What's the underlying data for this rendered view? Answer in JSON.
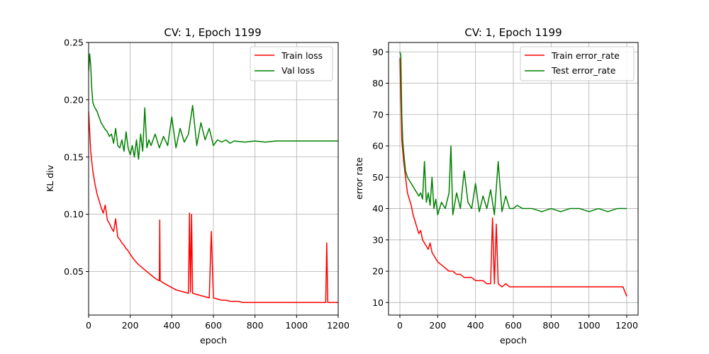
{
  "colors": {
    "train": "#ff0000",
    "val": "#008000",
    "grid": "#b0b0b0"
  },
  "chart_data": [
    {
      "type": "line",
      "title": "CV: 1, Epoch 1199",
      "xlabel": "epoch",
      "ylabel": "KL div",
      "xlim": [
        0,
        1200
      ],
      "ylim": [
        0.012,
        0.25
      ],
      "xticks": [
        0,
        200,
        400,
        600,
        800,
        1000,
        1200
      ],
      "yticks": [
        0.05,
        0.1,
        0.15,
        0.2,
        0.25
      ],
      "xtick_labels": [
        "0",
        "200",
        "400",
        "600",
        "800",
        "1000",
        "1200"
      ],
      "ytick_labels": [
        "0.05",
        "0.10",
        "0.15",
        "0.20",
        "0.25"
      ],
      "grid": true,
      "legend_position": "upper-right",
      "legend": [
        "Train loss",
        "Val loss"
      ],
      "series": [
        {
          "name": "Train loss",
          "color": "#ff0000",
          "x": [
            0,
            10,
            20,
            30,
            40,
            50,
            60,
            70,
            80,
            90,
            100,
            110,
            120,
            130,
            140,
            150,
            160,
            170,
            180,
            190,
            200,
            220,
            240,
            260,
            280,
            300,
            320,
            340,
            342,
            344,
            360,
            380,
            400,
            420,
            440,
            460,
            480,
            485,
            490,
            495,
            500,
            520,
            540,
            560,
            580,
            590,
            600,
            620,
            640,
            660,
            680,
            700,
            720,
            740,
            760,
            780,
            800,
            820,
            840,
            860,
            880,
            900,
            920,
            940,
            960,
            980,
            1000,
            1020,
            1040,
            1060,
            1080,
            1100,
            1120,
            1140,
            1145,
            1150,
            1160,
            1180,
            1200
          ],
          "y": [
            0.19,
            0.155,
            0.138,
            0.127,
            0.118,
            0.112,
            0.106,
            0.101,
            0.108,
            0.095,
            0.092,
            0.088,
            0.085,
            0.096,
            0.08,
            0.078,
            0.075,
            0.073,
            0.07,
            0.068,
            0.065,
            0.06,
            0.056,
            0.053,
            0.05,
            0.047,
            0.044,
            0.042,
            0.095,
            0.042,
            0.04,
            0.038,
            0.036,
            0.034,
            0.033,
            0.032,
            0.031,
            0.101,
            0.032,
            0.1,
            0.031,
            0.03,
            0.029,
            0.028,
            0.027,
            0.085,
            0.027,
            0.026,
            0.025,
            0.025,
            0.024,
            0.024,
            0.024,
            0.023,
            0.023,
            0.023,
            0.023,
            0.023,
            0.023,
            0.023,
            0.023,
            0.023,
            0.023,
            0.023,
            0.023,
            0.023,
            0.023,
            0.023,
            0.023,
            0.023,
            0.023,
            0.023,
            0.023,
            0.023,
            0.075,
            0.023,
            0.023,
            0.023,
            0.023
          ]
        },
        {
          "name": "Val loss",
          "color": "#008000",
          "x": [
            0,
            5,
            10,
            15,
            20,
            25,
            30,
            40,
            50,
            60,
            70,
            80,
            90,
            100,
            110,
            120,
            130,
            140,
            150,
            160,
            170,
            180,
            190,
            200,
            210,
            220,
            230,
            240,
            250,
            260,
            270,
            280,
            290,
            300,
            320,
            340,
            360,
            380,
            400,
            420,
            440,
            460,
            480,
            500,
            520,
            540,
            560,
            580,
            600,
            620,
            640,
            660,
            680,
            700,
            750,
            800,
            850,
            900,
            950,
            1000,
            1050,
            1100,
            1150,
            1200
          ],
          "y": [
            0.225,
            0.24,
            0.23,
            0.21,
            0.198,
            0.195,
            0.193,
            0.19,
            0.185,
            0.18,
            0.177,
            0.174,
            0.172,
            0.168,
            0.17,
            0.162,
            0.175,
            0.16,
            0.158,
            0.165,
            0.155,
            0.172,
            0.158,
            0.152,
            0.16,
            0.15,
            0.165,
            0.148,
            0.17,
            0.155,
            0.193,
            0.158,
            0.165,
            0.16,
            0.17,
            0.158,
            0.168,
            0.16,
            0.185,
            0.158,
            0.175,
            0.163,
            0.17,
            0.195,
            0.16,
            0.18,
            0.165,
            0.175,
            0.16,
            0.165,
            0.163,
            0.165,
            0.162,
            0.164,
            0.163,
            0.164,
            0.163,
            0.164,
            0.164,
            0.164,
            0.164,
            0.164,
            0.164,
            0.164
          ]
        }
      ]
    },
    {
      "type": "line",
      "title": "CV: 1, Epoch 1199",
      "xlabel": "epoch",
      "ylabel": "error rate",
      "xlim": [
        -60,
        1260
      ],
      "ylim": [
        6,
        93
      ],
      "xticks": [
        0,
        200,
        400,
        600,
        800,
        1000,
        1200
      ],
      "yticks": [
        10,
        20,
        30,
        40,
        50,
        60,
        70,
        80,
        90
      ],
      "xtick_labels": [
        "0",
        "200",
        "400",
        "600",
        "800",
        "1000",
        "1200"
      ],
      "ytick_labels": [
        "10",
        "20",
        "30",
        "40",
        "50",
        "60",
        "70",
        "80",
        "90"
      ],
      "grid": true,
      "legend_position": "upper-right",
      "legend": [
        "Train error_rate",
        "Test error_rate"
      ],
      "series": [
        {
          "name": "Train error_rate",
          "color": "#ff0000",
          "x": [
            0,
            10,
            20,
            30,
            40,
            50,
            60,
            70,
            80,
            90,
            100,
            110,
            120,
            130,
            140,
            150,
            160,
            170,
            180,
            190,
            200,
            220,
            240,
            260,
            280,
            300,
            320,
            340,
            360,
            380,
            400,
            420,
            440,
            460,
            480,
            490,
            500,
            510,
            520,
            540,
            560,
            580,
            600,
            620,
            640,
            660,
            680,
            700,
            720,
            740,
            760,
            780,
            800,
            820,
            840,
            860,
            880,
            900,
            920,
            940,
            960,
            980,
            1000,
            1020,
            1040,
            1060,
            1080,
            1100,
            1120,
            1140,
            1160,
            1180,
            1200
          ],
          "y": [
            88,
            62,
            55,
            50,
            45,
            43,
            41,
            38,
            36,
            34,
            32,
            33,
            30,
            29,
            28,
            27,
            29,
            26,
            25,
            24,
            23,
            22,
            21,
            20,
            20,
            19,
            19,
            18,
            18,
            18,
            17,
            17,
            17,
            16,
            16,
            37,
            16,
            35,
            16,
            15,
            16,
            15,
            15,
            15,
            15,
            15,
            15,
            15,
            15,
            15,
            15,
            15,
            15,
            15,
            15,
            15,
            15,
            15,
            15,
            15,
            15,
            15,
            15,
            15,
            15,
            15,
            15,
            15,
            15,
            15,
            15,
            15,
            12
          ]
        },
        {
          "name": "Test error_rate",
          "color": "#008000",
          "x": [
            0,
            5,
            10,
            15,
            20,
            25,
            30,
            40,
            50,
            60,
            70,
            80,
            90,
            100,
            110,
            120,
            130,
            140,
            150,
            160,
            170,
            180,
            190,
            200,
            220,
            240,
            260,
            270,
            280,
            300,
            320,
            340,
            360,
            380,
            400,
            420,
            440,
            460,
            480,
            500,
            520,
            540,
            560,
            580,
            600,
            620,
            650,
            700,
            750,
            800,
            850,
            900,
            950,
            1000,
            1050,
            1100,
            1150,
            1200
          ],
          "y": [
            90,
            89,
            70,
            62,
            58,
            55,
            52,
            50,
            49,
            48,
            47,
            46,
            45,
            44,
            45,
            43,
            55,
            42,
            45,
            41,
            50,
            40,
            43,
            38,
            42,
            40,
            45,
            60,
            38,
            45,
            40,
            52,
            42,
            40,
            48,
            39,
            44,
            40,
            46,
            38,
            55,
            39,
            44,
            40,
            40,
            41,
            40,
            40,
            39,
            40,
            39,
            40,
            40,
            39,
            40,
            39,
            40,
            40
          ]
        }
      ]
    }
  ]
}
